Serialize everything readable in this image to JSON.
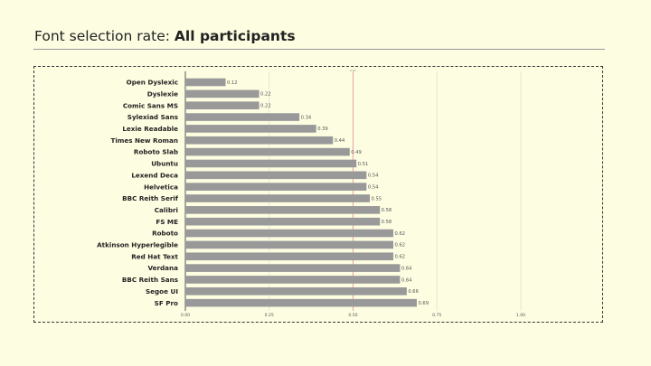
{
  "header": {
    "title_prefix": "Font selection rate:",
    "title_bold": "All participants"
  },
  "chart_data": {
    "type": "bar",
    "orientation": "horizontal",
    "title": "Font selection rate: All participants",
    "xlabel": "",
    "ylabel": "",
    "xlim": [
      0,
      1
    ],
    "x_ticks": [
      0.0,
      0.25,
      0.5,
      0.75,
      1.0
    ],
    "x_tick_labels": [
      "0.00",
      "0.25",
      "0.50",
      "0.75",
      "1.00"
    ],
    "reference_line": {
      "value": 0.5,
      "color": "#e8a0a0",
      "label": "0.50"
    },
    "grid": true,
    "bar_color": "#999999",
    "categories": [
      "Open Dyslexic",
      "Dyslexie",
      "Comic Sans MS",
      "Sylexiad Sans",
      "Lexie Readable",
      "Times New Roman",
      "Roboto Slab",
      "Ubuntu",
      "Lexend Deca",
      "Helvetica",
      "BBC Reith Serif",
      "Calibri",
      "FS ME",
      "Roboto",
      "Atkinson Hyperlegible",
      "Red Hat Text",
      "Verdana",
      "BBC Reith Sans",
      "Segoe UI",
      "SF Pro"
    ],
    "values": [
      0.12,
      0.22,
      0.22,
      0.34,
      0.39,
      0.44,
      0.49,
      0.51,
      0.54,
      0.54,
      0.55,
      0.58,
      0.58,
      0.62,
      0.62,
      0.62,
      0.64,
      0.64,
      0.66,
      0.69
    ],
    "value_labels": [
      "0.12",
      "0.22",
      "0.22",
      "0.34",
      "0.39",
      "0.44",
      "0.49",
      "0.51",
      "0.54",
      "0.54",
      "0.55",
      "0.58",
      "0.58",
      "0.62",
      "0.62",
      "0.62",
      "0.64",
      "0.64",
      "0.66",
      "0.69"
    ]
  }
}
